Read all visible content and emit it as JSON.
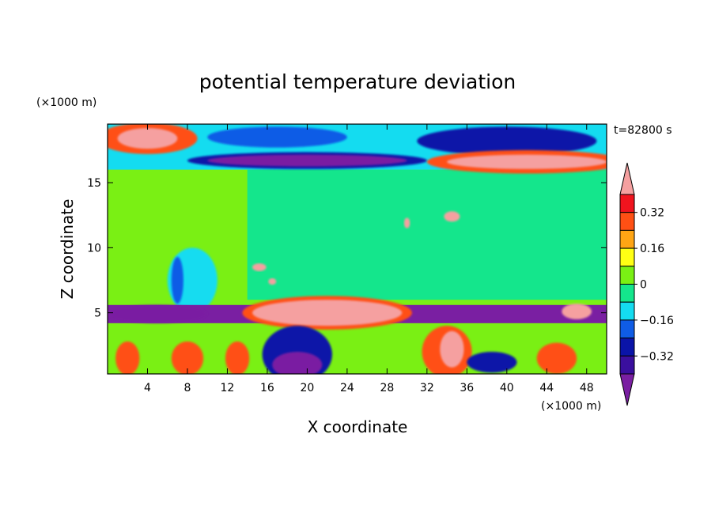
{
  "chart_data": {
    "type": "heatmap",
    "title": "potential temperature deviation",
    "xlabel": "X coordinate",
    "ylabel": "Z coordinate",
    "x_unit": "(×1000 m)",
    "y_unit": "(×1000 m)",
    "time_label": "t=82800 s",
    "xlim": [
      0,
      50
    ],
    "ylim": [
      0.3,
      19.5
    ],
    "x_ticks": [
      4,
      8,
      12,
      16,
      20,
      24,
      28,
      32,
      36,
      40,
      44,
      48
    ],
    "y_ticks": [
      5,
      10,
      15
    ],
    "colorbar": {
      "levels": [
        -0.48,
        -0.4,
        -0.32,
        -0.24,
        -0.16,
        -0.08,
        0,
        0.08,
        0.16,
        0.24,
        0.32,
        0.4
      ],
      "tick_labels": [
        "-0.32",
        "-0.16",
        "0",
        "0.16",
        "0.32"
      ],
      "tick_values": [
        -0.32,
        -0.16,
        0,
        0.16,
        0.32
      ],
      "colors": [
        "#7a1fa2",
        "#3a0f9e",
        "#0a14a8",
        "#0f5ce6",
        "#14dcf0",
        "#14e68c",
        "#7af014",
        "#ffff14",
        "#ffa514",
        "#ff5014",
        "#f0141e",
        "#f5a0a0"
      ]
    },
    "field_regions": [
      {
        "shape": "rect",
        "x": [
          0,
          50
        ],
        "z": [
          0.3,
          19.5
        ],
        "value": 0.04
      },
      {
        "shape": "rect",
        "x": [
          14,
          50
        ],
        "z": [
          6,
          16
        ],
        "value": -0.04
      },
      {
        "shape": "rect",
        "x": [
          0,
          50
        ],
        "z": [
          16,
          19.5
        ],
        "value": -0.12
      },
      {
        "shape": "ellipse",
        "cx": 17,
        "cz": 18.5,
        "rx": 7,
        "rz": 0.8,
        "value": -0.2
      },
      {
        "shape": "ellipse",
        "cx": 40,
        "cz": 18.2,
        "rx": 9,
        "rz": 1.1,
        "value": -0.28
      },
      {
        "shape": "ellipse",
        "cx": 20,
        "cz": 16.7,
        "rx": 12,
        "rz": 0.65,
        "value": -0.3
      },
      {
        "shape": "ellipse",
        "cx": 20,
        "cz": 16.7,
        "rx": 10,
        "rz": 0.45,
        "value": -0.42
      },
      {
        "shape": "ellipse",
        "cx": 4,
        "cz": 18.4,
        "rx": 5,
        "rz": 1.2,
        "value": 0.3
      },
      {
        "shape": "ellipse",
        "cx": 4,
        "cz": 18.4,
        "rx": 3,
        "rz": 0.8,
        "value": 0.44
      },
      {
        "shape": "ellipse",
        "cx": 42,
        "cz": 16.6,
        "rx": 10,
        "rz": 0.9,
        "value": 0.24
      },
      {
        "shape": "ellipse",
        "cx": 42,
        "cz": 16.6,
        "rx": 8,
        "rz": 0.55,
        "value": 0.44
      },
      {
        "shape": "ellipse",
        "cx": 8.5,
        "cz": 7.5,
        "rx": 2.5,
        "rz": 2.5,
        "value": -0.1
      },
      {
        "shape": "ellipse",
        "cx": 7,
        "cz": 7.5,
        "rx": 0.6,
        "rz": 1.8,
        "value": -0.2
      },
      {
        "shape": "rect",
        "x": [
          0,
          50
        ],
        "z": [
          4.2,
          5.6
        ],
        "value": -0.42
      },
      {
        "shape": "ellipse",
        "cx": 5,
        "cz": 4.9,
        "rx": 5,
        "rz": 0.7,
        "value": -0.46
      },
      {
        "shape": "ellipse",
        "cx": 22,
        "cz": 5.0,
        "rx": 8.5,
        "rz": 1.3,
        "value": 0.3
      },
      {
        "shape": "ellipse",
        "cx": 22,
        "cz": 5.0,
        "rx": 7.5,
        "rz": 1.0,
        "value": 0.44
      },
      {
        "shape": "ellipse",
        "cx": 47,
        "cz": 5.1,
        "rx": 1.5,
        "rz": 0.6,
        "value": 0.44
      },
      {
        "shape": "ellipse",
        "cx": 19,
        "cz": 1.8,
        "rx": 3.5,
        "rz": 2.2,
        "value": -0.3
      },
      {
        "shape": "ellipse",
        "cx": 19,
        "cz": 1.0,
        "rx": 2.5,
        "rz": 1.0,
        "value": -0.46
      },
      {
        "shape": "ellipse",
        "cx": 2,
        "cz": 1.5,
        "rx": 1.2,
        "rz": 1.3,
        "value": 0.3
      },
      {
        "shape": "ellipse",
        "cx": 8,
        "cz": 1.5,
        "rx": 1.6,
        "rz": 1.3,
        "value": 0.3
      },
      {
        "shape": "ellipse",
        "cx": 13,
        "cz": 1.5,
        "rx": 1.2,
        "rz": 1.3,
        "value": 0.3
      },
      {
        "shape": "ellipse",
        "cx": 34,
        "cz": 2.0,
        "rx": 2.5,
        "rz": 2.0,
        "value": 0.3
      },
      {
        "shape": "ellipse",
        "cx": 34.5,
        "cz": 2.2,
        "rx": 1.2,
        "rz": 1.4,
        "value": 0.44
      },
      {
        "shape": "ellipse",
        "cx": 38.5,
        "cz": 1.2,
        "rx": 2.5,
        "rz": 0.8,
        "value": -0.3
      },
      {
        "shape": "ellipse",
        "cx": 45,
        "cz": 1.5,
        "rx": 2,
        "rz": 1.2,
        "value": 0.3
      },
      {
        "shape": "ellipse",
        "cx": 15.2,
        "cz": 8.5,
        "rx": 0.7,
        "rz": 0.3,
        "value": 0.44
      },
      {
        "shape": "ellipse",
        "cx": 16.5,
        "cz": 7.4,
        "rx": 0.4,
        "rz": 0.25,
        "value": 0.44
      },
      {
        "shape": "ellipse",
        "cx": 30,
        "cz": 11.9,
        "rx": 0.3,
        "rz": 0.4,
        "value": 0.44
      },
      {
        "shape": "ellipse",
        "cx": 34.5,
        "cz": 12.4,
        "rx": 0.8,
        "rz": 0.4,
        "value": 0.44
      }
    ]
  }
}
